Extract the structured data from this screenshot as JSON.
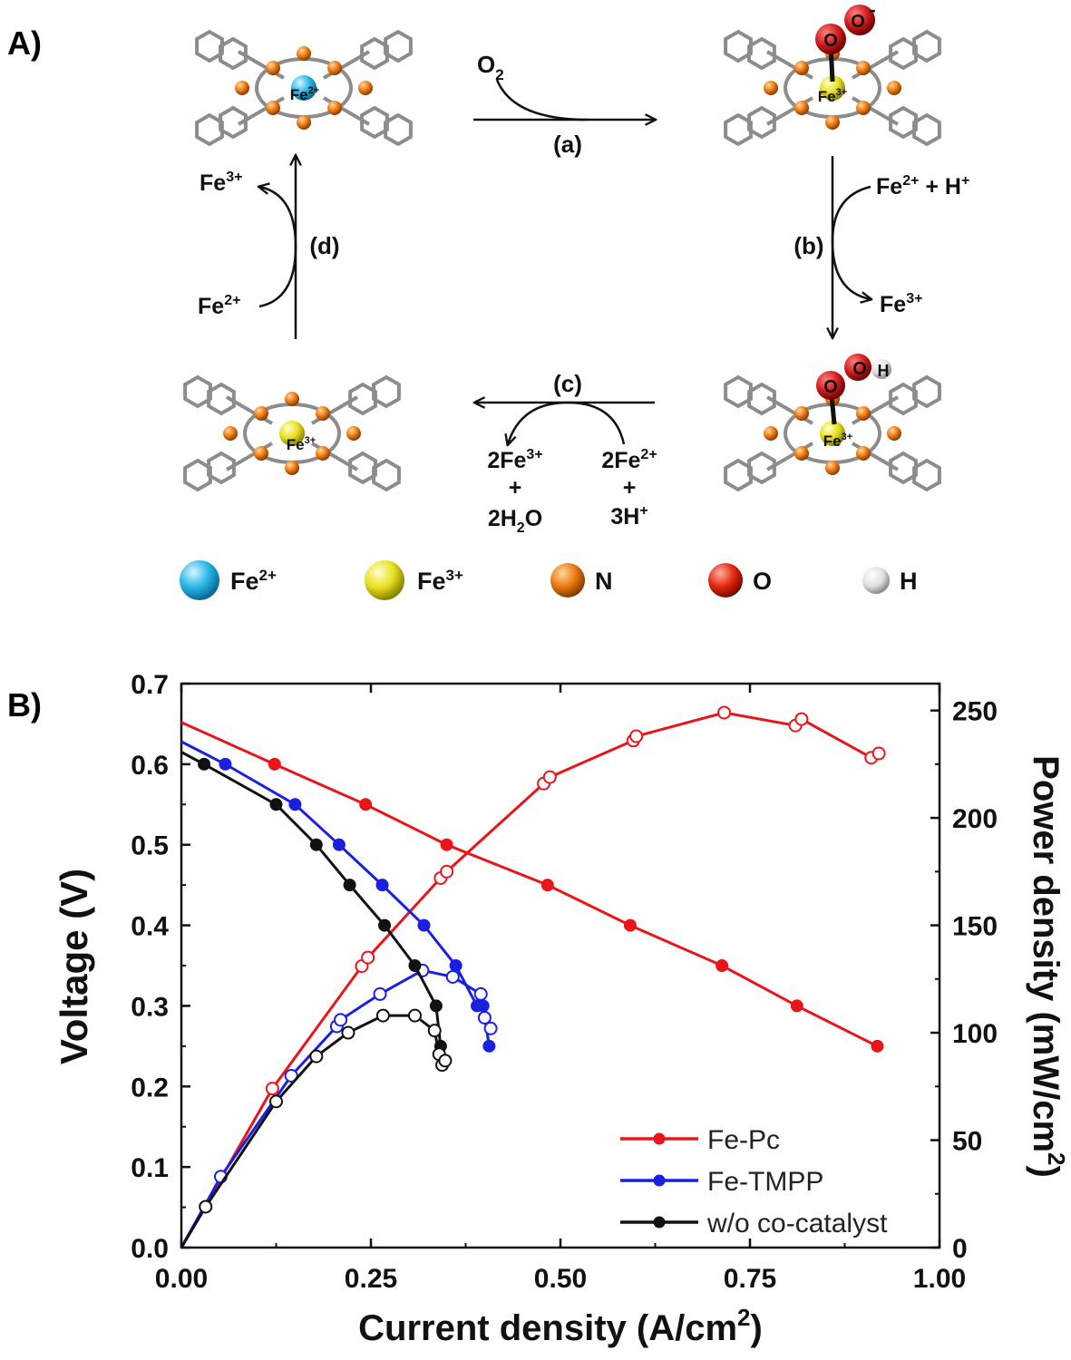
{
  "panel_a": {
    "label": "A)",
    "step_labels": {
      "a": "(a)",
      "b": "(b)",
      "c": "(c)",
      "d": "(d)"
    },
    "o2": {
      "base": "O",
      "sub": "2"
    },
    "molecules": {
      "top_left": {
        "center": {
          "base": "Fe",
          "sup": "2+"
        }
      },
      "top_right": {
        "center": {
          "base": "Fe",
          "sup": "3+"
        },
        "ligand_o1": "O",
        "ligand_o2": "O",
        "charge": "-"
      },
      "bottom_right": {
        "center": {
          "base": "Fe",
          "sup": "3+"
        },
        "ligand_o1": "O",
        "ligand_o2": "O",
        "ligand_h": "H"
      },
      "bottom_left": {
        "center": {
          "base": "Fe",
          "sup": "3+"
        }
      }
    },
    "step_b": {
      "in_base": "Fe",
      "in_sup": "2+",
      "in_plus": " + H",
      "in_plus_sup": "+",
      "out_base": "Fe",
      "out_sup": "3+"
    },
    "step_c": {
      "in_line1_base": "2Fe",
      "in_line1_sup": "2+",
      "in_plus": "+",
      "in_line2_base": "3H",
      "in_line2_sup": "+",
      "out_line1_base": "2Fe",
      "out_line1_sup": "3+",
      "out_plus": "+",
      "out_line2_pre": "2H",
      "out_line2_sub": "2",
      "out_line2_post": "O"
    },
    "step_d": {
      "in_base": "Fe",
      "in_sup": "2+",
      "out_base": "Fe",
      "out_sup": "3+"
    },
    "legend": [
      {
        "base": "Fe",
        "sup": "2+",
        "color": "#29b6e8"
      },
      {
        "base": "Fe",
        "sup": "3+",
        "color": "#e8e020"
      },
      {
        "base": "N",
        "sup": "",
        "color": "#ee7a10"
      },
      {
        "base": "O",
        "sup": "",
        "color": "#e52b10"
      },
      {
        "base": "H",
        "sup": "",
        "color": "#e0e0e0"
      }
    ],
    "colors": {
      "frame": "#8c8c8c",
      "n_atom": "#ee7a10",
      "o_atom": "#d42020"
    }
  },
  "panel_b": {
    "label": "B)"
  },
  "chart_data": {
    "type": "line",
    "xlabel": {
      "text": "Current density (A/cm",
      "sup": "2",
      "tail": ")"
    },
    "ylabel": "Voltage (V)",
    "y2label": {
      "text": "Power density (mW/cm",
      "sup": "2",
      "tail": ")"
    },
    "xlim": [
      0,
      1.0
    ],
    "ylim": [
      0,
      0.7
    ],
    "y2lim": [
      0,
      262.5
    ],
    "xticks": [
      0.0,
      0.25,
      0.5,
      0.75,
      1.0
    ],
    "xtick_labels": [
      "0.00",
      "0.25",
      "0.50",
      "0.75",
      "1.00"
    ],
    "yticks": [
      0.0,
      0.1,
      0.2,
      0.3,
      0.4,
      0.5,
      0.6,
      0.7
    ],
    "ytick_labels": [
      "0.0",
      "0.1",
      "0.2",
      "0.3",
      "0.4",
      "0.5",
      "0.6",
      "0.7"
    ],
    "y2ticks": [
      0,
      50,
      100,
      150,
      200,
      250
    ],
    "y2tick_labels": [
      "0",
      "50",
      "100",
      "150",
      "200",
      "250"
    ],
    "grid": false,
    "legend_position": "bottom-right",
    "series": [
      {
        "name": "Fe-Pc",
        "color": "#e8161a",
        "voltage": {
          "x": [
            0.0,
            0.123,
            0.243,
            0.35,
            0.483,
            0.592,
            0.713,
            0.812,
            0.918
          ],
          "y": [
            0.652,
            0.6,
            0.55,
            0.5,
            0.45,
            0.4,
            0.35,
            0.3,
            0.25
          ]
        },
        "power": {
          "x": [
            0.0,
            0.12,
            0.238,
            0.246,
            0.342,
            0.35,
            0.478,
            0.486,
            0.596,
            0.6,
            0.716,
            0.81,
            0.818,
            0.91,
            0.92
          ],
          "y": [
            0,
            74,
            131,
            135,
            172,
            175,
            216,
            219,
            236,
            238,
            249,
            243,
            246,
            228,
            230
          ]
        }
      },
      {
        "name": "Fe-TMPP",
        "color": "#1a20e0",
        "voltage": {
          "x": [
            0.0,
            0.058,
            0.15,
            0.208,
            0.265,
            0.32,
            0.362,
            0.39,
            0.398,
            0.406
          ],
          "y": [
            0.628,
            0.6,
            0.55,
            0.5,
            0.45,
            0.4,
            0.35,
            0.3,
            0.3,
            0.25
          ]
        },
        "power": {
          "x": [
            0.0,
            0.052,
            0.145,
            0.205,
            0.21,
            0.262,
            0.318,
            0.358,
            0.395,
            0.4,
            0.408
          ],
          "y": [
            0,
            33,
            80,
            103,
            106,
            118,
            129,
            126,
            118,
            107,
            102
          ]
        }
      },
      {
        "name": "w/o co-catalyst",
        "color": "#111111",
        "voltage": {
          "x": [
            0.0,
            0.03,
            0.125,
            0.178,
            0.222,
            0.268,
            0.308,
            0.336,
            0.342
          ],
          "y": [
            0.615,
            0.6,
            0.55,
            0.5,
            0.45,
            0.4,
            0.35,
            0.3,
            0.25
          ]
        },
        "power": {
          "x": [
            0.0,
            0.032,
            0.125,
            0.178,
            0.22,
            0.266,
            0.308,
            0.334,
            0.34,
            0.344,
            0.348
          ],
          "y": [
            0,
            19,
            68,
            89,
            100,
            108,
            108,
            101,
            90,
            85,
            87
          ]
        }
      }
    ]
  }
}
